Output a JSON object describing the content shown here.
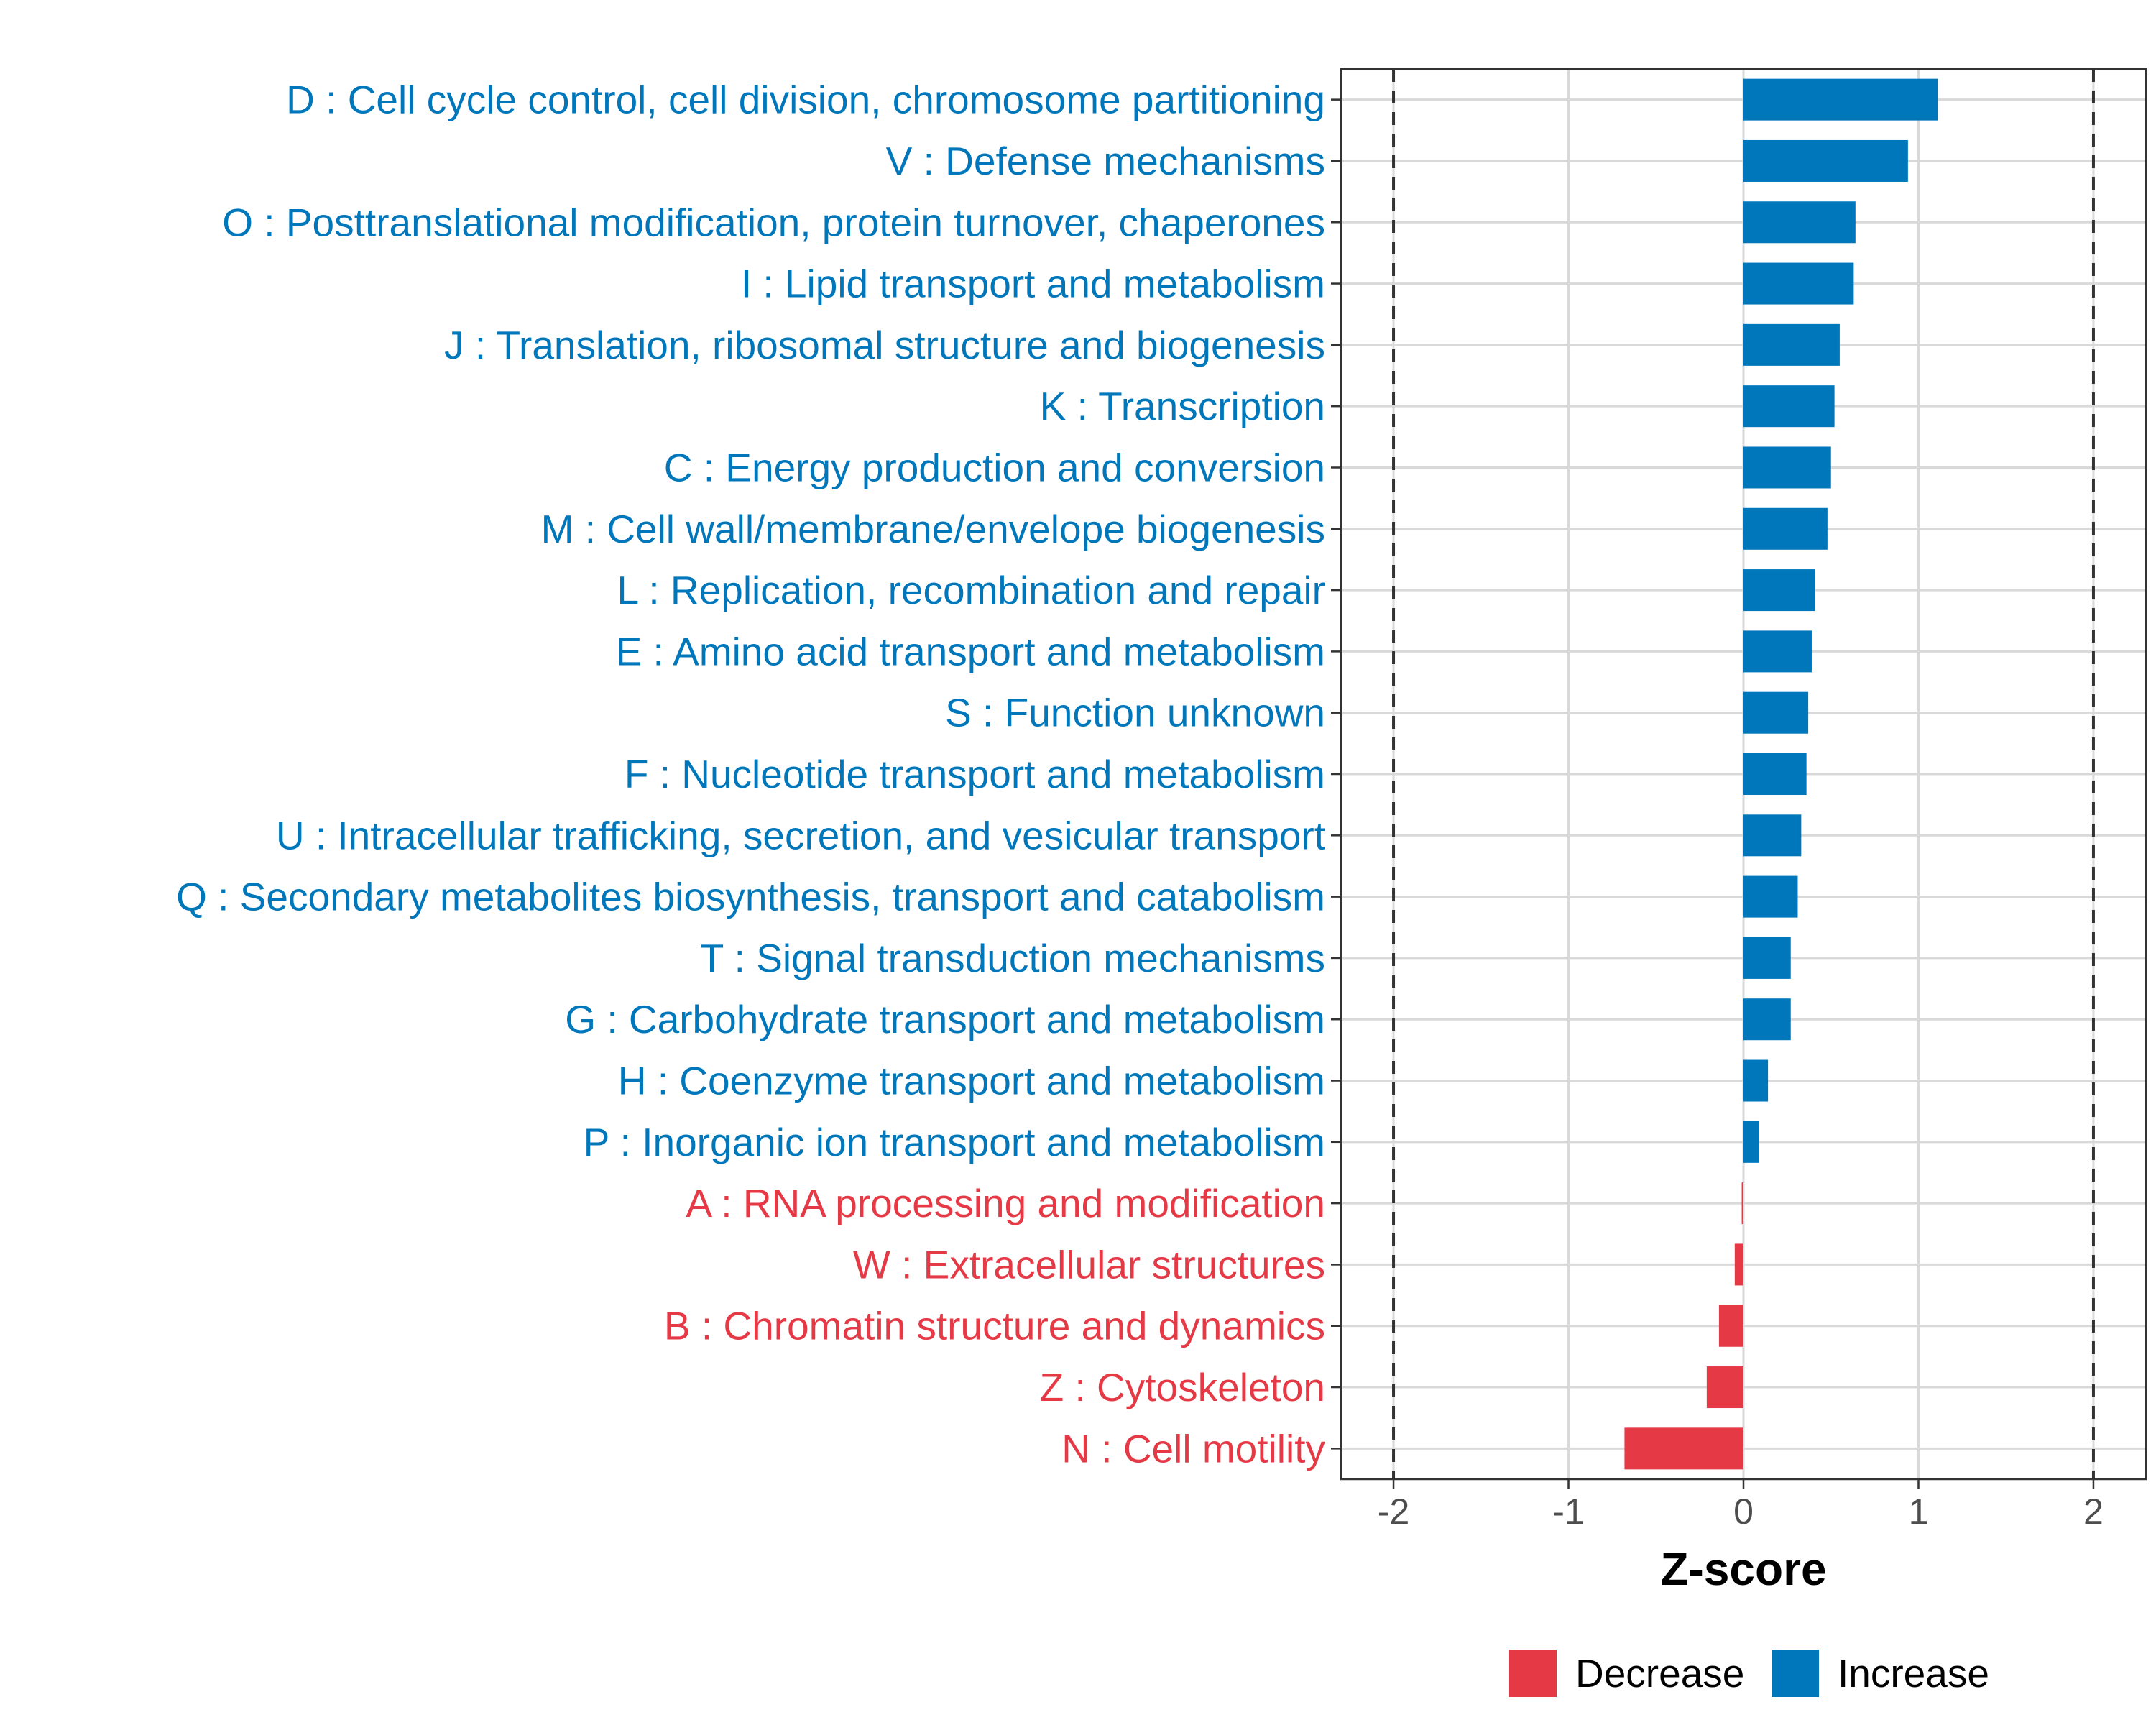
{
  "chart_data": {
    "type": "bar",
    "orientation": "horizontal",
    "xlabel": "Z-score",
    "ylabel": "",
    "xlim": [
      -2.3,
      2.3
    ],
    "xticks": [
      -2,
      -1,
      0,
      1,
      2
    ],
    "xtick_labels": [
      "-2",
      "-1",
      "0",
      "1",
      "2"
    ],
    "reference_lines": [
      -2,
      2
    ],
    "grid": true,
    "colors": {
      "Increase": "#0077bb",
      "Decrease": "#e63946"
    },
    "categories": [
      "D : Cell cycle control, cell division, chromosome partitioning",
      "V : Defense mechanisms",
      "O : Posttranslational modification, protein turnover, chaperones",
      "I : Lipid transport and metabolism",
      "J : Translation, ribosomal structure and biogenesis",
      "K : Transcription",
      "C : Energy production and conversion",
      "M : Cell wall/membrane/envelope biogenesis",
      "L : Replication, recombination and repair",
      "E : Amino acid transport and metabolism",
      "S : Function unknown",
      "F : Nucleotide transport and metabolism",
      "U : Intracellular trafficking, secretion, and vesicular transport",
      "Q : Secondary metabolites biosynthesis, transport and catabolism",
      "T : Signal transduction mechanisms",
      "G : Carbohydrate transport and metabolism",
      "H : Coenzyme transport and metabolism",
      "P : Inorganic ion transport and metabolism",
      "A : RNA processing and modification",
      "W : Extracellular structures",
      "B : Chromatin structure and dynamics",
      "Z : Cytoskeleton",
      "N : Cell motility"
    ],
    "values": [
      1.11,
      0.94,
      0.64,
      0.63,
      0.55,
      0.52,
      0.5,
      0.48,
      0.41,
      0.39,
      0.37,
      0.36,
      0.33,
      0.31,
      0.27,
      0.27,
      0.14,
      0.09,
      -0.01,
      -0.05,
      -0.14,
      -0.21,
      -0.68
    ],
    "groups": [
      "Increase",
      "Increase",
      "Increase",
      "Increase",
      "Increase",
      "Increase",
      "Increase",
      "Increase",
      "Increase",
      "Increase",
      "Increase",
      "Increase",
      "Increase",
      "Increase",
      "Increase",
      "Increase",
      "Increase",
      "Increase",
      "Decrease",
      "Decrease",
      "Decrease",
      "Decrease",
      "Decrease"
    ],
    "legend": {
      "position": "bottom",
      "entries": [
        {
          "label": "Decrease",
          "color": "#e63946"
        },
        {
          "label": "Increase",
          "color": "#0077bb"
        }
      ]
    }
  }
}
